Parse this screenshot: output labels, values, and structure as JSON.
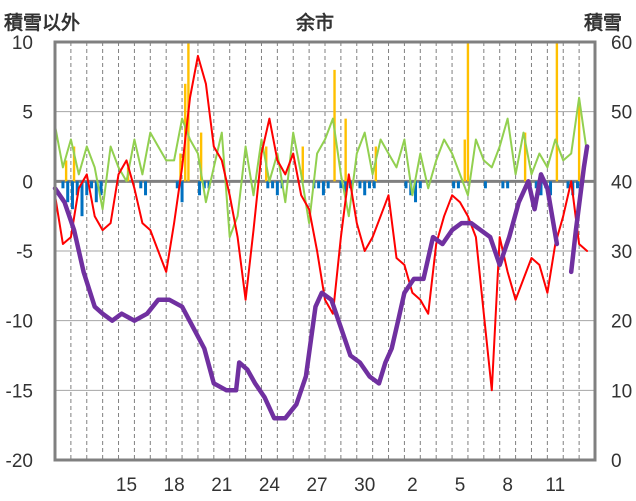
{
  "chart_data": {
    "type": "line",
    "title": "余市",
    "ylabel_left": "積雪以外",
    "ylabel_right": "積雪",
    "ylim_left": [
      -20,
      10
    ],
    "ylim_right": [
      0,
      60
    ],
    "yticks_left": [
      10,
      5,
      0,
      -5,
      -10,
      -15,
      -20
    ],
    "yticks_right": [
      60,
      50,
      40,
      30,
      20,
      10,
      0
    ],
    "x_ticks": [
      {
        "label": "15",
        "x": 4.5
      },
      {
        "label": "18",
        "x": 7.5
      },
      {
        "label": "21",
        "x": 10.5
      },
      {
        "label": "24",
        "x": 13.5
      },
      {
        "label": "27",
        "x": 16.5
      },
      {
        "label": "30",
        "x": 19.5
      },
      {
        "label": "2",
        "x": 22.5
      },
      {
        "label": "5",
        "x": 25.5
      },
      {
        "label": "8",
        "x": 28.5
      },
      {
        "label": "11",
        "x": 31.5
      }
    ],
    "xlim": [
      0,
      34
    ],
    "grid_vertical_dashed": true,
    "grid_horizontal": true,
    "colors": {
      "temperature": "#ff0000",
      "snow_depth": "#7030a0",
      "wind": "#92d050",
      "snowfall_bars": "#ffc000",
      "precip_neg_bars": "#0070c0",
      "zero_line": "#808080",
      "frame": "#808080"
    },
    "series": [
      {
        "key": "temperature",
        "axis": "left",
        "x": [
          0,
          0.5,
          1,
          1.5,
          2,
          2.5,
          3,
          3.5,
          4,
          4.5,
          5,
          5.5,
          6,
          6.5,
          7,
          7.5,
          8,
          8.5,
          9,
          9.5,
          10,
          10.5,
          11,
          11.5,
          12,
          12.5,
          13,
          13.5,
          14,
          14.5,
          15,
          15.5,
          16,
          16.5,
          17,
          17.5,
          18,
          18.5,
          19,
          19.5,
          20,
          20.5,
          21,
          21.5,
          22,
          22.5,
          23,
          23.5,
          24,
          24.5,
          25,
          25.5,
          26,
          26.5,
          27,
          27.5,
          28,
          28.5,
          29,
          29.5,
          30,
          30.5,
          31,
          31.5,
          32,
          32.5,
          33,
          33.5
        ],
        "values": [
          -1.0,
          -4.5,
          -4.0,
          -0.5,
          0.5,
          -2.5,
          -3.5,
          -3.0,
          0.5,
          1.5,
          -0.5,
          -3.0,
          -3.5,
          -5.0,
          -6.5,
          -3.0,
          1.0,
          6.0,
          9.0,
          7.0,
          2.5,
          1.5,
          -1.0,
          -4.0,
          -8.5,
          -3.5,
          2.0,
          4.5,
          1.5,
          0.5,
          2.0,
          -1.0,
          -2.0,
          -5.0,
          -8.5,
          -9.5,
          -4.0,
          0.5,
          -3.0,
          -5.0,
          -4.0,
          -2.5,
          -1.0,
          -5.5,
          -6.0,
          -8.0,
          -8.5,
          -9.5,
          -4.5,
          -2.5,
          -1.0,
          -1.5,
          -2.5,
          -4.0,
          -9.5,
          -15.0,
          -4.0,
          -6.5,
          -8.5,
          -7.0,
          -5.5,
          -6.0,
          -8.0,
          -4.5,
          -2.5,
          0.0,
          -4.5,
          -5.0
        ]
      },
      {
        "key": "wind",
        "axis": "left",
        "x": [
          0,
          0.5,
          1,
          1.5,
          2,
          2.5,
          3,
          3.5,
          4,
          4.5,
          5,
          5.5,
          6,
          6.5,
          7,
          7.5,
          8,
          8.5,
          9,
          9.5,
          10,
          10.5,
          11,
          11.5,
          12,
          12.5,
          13,
          13.5,
          14,
          14.5,
          15,
          15.5,
          16,
          16.5,
          17,
          17.5,
          18,
          18.5,
          19,
          19.5,
          20,
          20.5,
          21,
          21.5,
          22,
          22.5,
          23,
          23.5,
          24,
          24.5,
          25,
          25.5,
          26,
          26.5,
          27,
          27.5,
          28,
          28.5,
          29,
          29.5,
          30,
          30.5,
          31,
          31.5,
          32,
          32.5,
          33,
          33.5
        ],
        "values": [
          4.0,
          1.0,
          3.0,
          0.5,
          2.5,
          1.0,
          -2.0,
          2.5,
          1.0,
          0.0,
          3.0,
          0.5,
          3.5,
          2.5,
          1.5,
          1.5,
          4.5,
          3.0,
          2.0,
          -1.5,
          1.0,
          3.5,
          -4.0,
          -2.5,
          2.5,
          -1.0,
          3.0,
          0.0,
          2.0,
          -1.5,
          3.5,
          0.5,
          -3.0,
          2.0,
          3.0,
          4.5,
          0.5,
          -2.5,
          2.0,
          3.5,
          0.5,
          3.0,
          2.0,
          1.0,
          3.0,
          -1.0,
          2.0,
          -0.5,
          1.5,
          3.0,
          2.0,
          0.5,
          -1.0,
          3.0,
          1.5,
          1.0,
          2.5,
          4.5,
          0.5,
          3.5,
          0.5,
          2.0,
          1.0,
          3.0,
          1.5,
          2.0,
          6.0,
          2.0
        ]
      },
      {
        "key": "snow_depth",
        "axis": "right",
        "x": [
          0,
          0.6,
          1.2,
          1.8,
          2.5,
          3.0,
          3.6,
          4.2,
          5.0,
          5.8,
          6.5,
          7.2,
          8.0,
          8.7,
          9.4,
          10.0,
          10.8,
          11.4,
          11.6,
          12.1,
          12.6,
          13.2,
          13.8,
          14.5,
          15.2,
          15.8,
          16.4,
          16.8,
          17.4,
          18.0,
          18.6,
          19.2,
          19.8,
          20.4,
          20.8,
          21.2,
          21.6,
          22.0,
          22.6,
          23.2,
          23.8,
          24.4,
          25.0,
          25.6,
          26.2,
          26.8,
          27.4,
          28.0,
          28.6,
          29.2,
          29.8,
          30.2,
          30.6,
          31.0,
          31.6,
          32.0,
          32.5,
          32.8,
          33.3,
          33.5
        ],
        "values": [
          39,
          37,
          33,
          27,
          22,
          21,
          20,
          21,
          20,
          21,
          23,
          23,
          22,
          19,
          16,
          11,
          10,
          10,
          14,
          13,
          11,
          9,
          6,
          6,
          8,
          12,
          22,
          24,
          23,
          19,
          15,
          14,
          12,
          11,
          14,
          16,
          20,
          24,
          26,
          26,
          32,
          31,
          33,
          34,
          34,
          33,
          32,
          28,
          32,
          37,
          40,
          36,
          41,
          39,
          31,
          null,
          27,
          33,
          42,
          45
        ]
      }
    ],
    "snowfall_bars": {
      "axis": "left",
      "x": [
        0.7,
        1.2,
        4.6,
        7.9,
        8.2,
        8.4,
        9.2,
        13.3,
        15.6,
        17.6,
        18.3,
        20.2,
        25.8,
        26.0,
        29.6,
        31.6,
        33.0
      ],
      "values": [
        1.5,
        2.5,
        1.0,
        2.0,
        7.0,
        10.0,
        3.5,
        2.5,
        2.5,
        8.0,
        4.5,
        2.5,
        3.0,
        10.0,
        3.5,
        10.0,
        5.5
      ]
    },
    "precip_neg_bars": {
      "axis": "left",
      "x": [
        0.5,
        0.8,
        1.1,
        1.4,
        1.7,
        2.0,
        2.3,
        2.6,
        2.9,
        5.4,
        5.7,
        7.7,
        8.0,
        9.1,
        9.4,
        9.7,
        13.4,
        13.7,
        14.0,
        14.3,
        16.3,
        16.6,
        16.9,
        17.2,
        18.0,
        18.3,
        18.6,
        19.2,
        19.5,
        19.8,
        20.1,
        22.1,
        22.4,
        22.7,
        23.0,
        25.1,
        25.4,
        27.1,
        28.2,
        28.5,
        30.3,
        30.6,
        30.9,
        31.2,
        32.3,
        32.6,
        32.9
      ],
      "values": [
        -0.5,
        -1.5,
        -2.0,
        -1.0,
        -2.5,
        -1.0,
        -0.5,
        -1.5,
        -1.0,
        -0.5,
        -1.0,
        -0.5,
        -1.5,
        -1.0,
        -0.5,
        -0.5,
        -0.5,
        -0.5,
        -1.0,
        -0.5,
        -0.5,
        -0.5,
        -1.0,
        -0.5,
        -0.5,
        -1.0,
        -0.5,
        -0.5,
        -1.0,
        -0.5,
        -0.5,
        -0.5,
        -1.0,
        -1.5,
        -0.5,
        -0.5,
        -0.5,
        -0.5,
        -0.5,
        -0.5,
        -0.5,
        -1.0,
        -0.5,
        -1.0,
        -0.5,
        -1.0,
        -0.5
      ]
    }
  }
}
